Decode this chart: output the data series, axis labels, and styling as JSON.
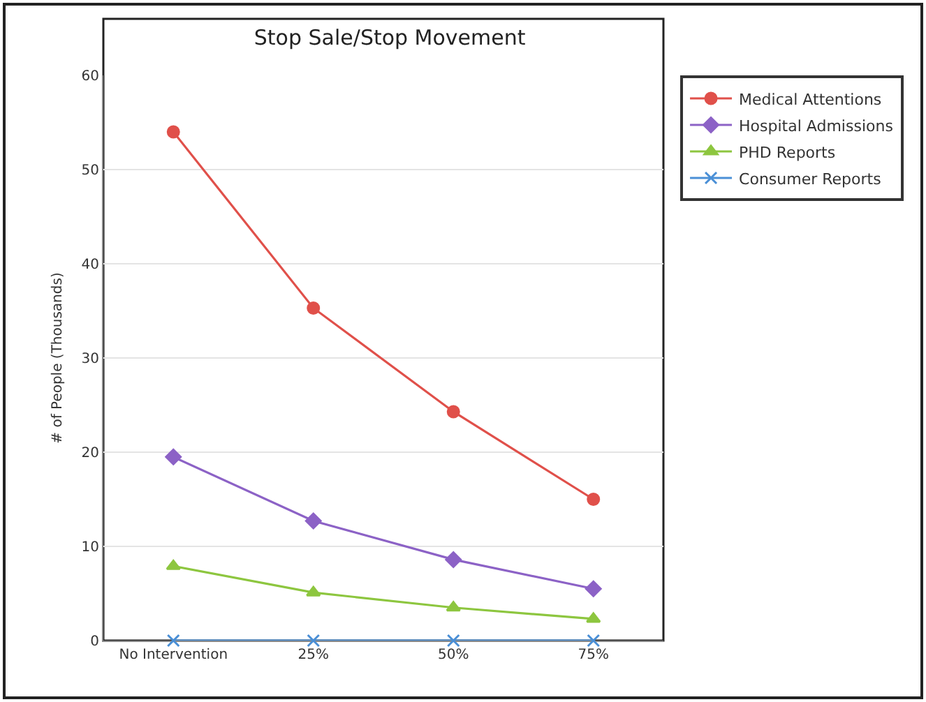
{
  "chart_data": {
    "type": "line",
    "title": "Stop Sale/Stop Movement",
    "ylabel": "# of People (Thousands)",
    "categories": [
      "No Intervention",
      "25%",
      "50%",
      "75%"
    ],
    "series": [
      {
        "name": "Medical Attentions",
        "color": "#e0504a",
        "marker": "circle",
        "values": [
          54,
          35.3,
          24.3,
          15
        ]
      },
      {
        "name": "Hospital Admissions",
        "color": "#8c62c6",
        "marker": "diamond",
        "values": [
          19.5,
          12.7,
          8.6,
          5.5
        ]
      },
      {
        "name": "PHD Reports",
        "color": "#8dc63f",
        "marker": "triangle",
        "values": [
          7.9,
          5.1,
          3.5,
          2.3
        ]
      },
      {
        "name": "Consumer Reports",
        "color": "#4a8fd6",
        "marker": "cross",
        "values": [
          0,
          0,
          0,
          0
        ]
      }
    ],
    "ylim": [
      0,
      60
    ],
    "yticks": [
      0,
      10,
      20,
      30,
      40,
      50,
      60
    ],
    "grid": "y",
    "legend": "right",
    "line_style": "solid"
  }
}
